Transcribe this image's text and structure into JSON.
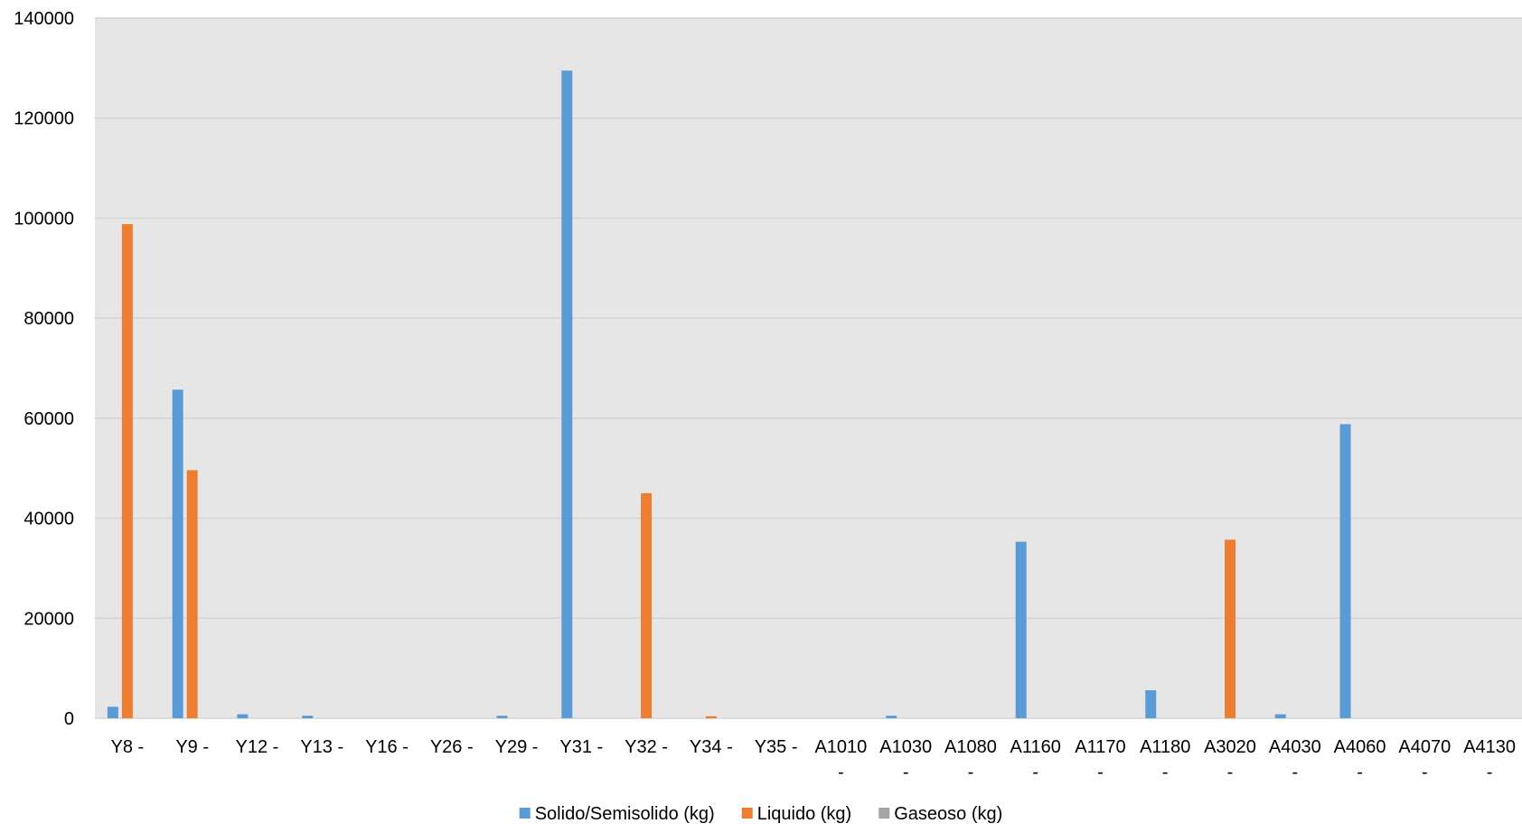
{
  "chart_data": {
    "type": "bar",
    "title": "",
    "xlabel": "",
    "ylabel": "",
    "ylim": [
      0,
      140000
    ],
    "yticks": [
      "0",
      "20000",
      "40000",
      "60000",
      "80000",
      "100000",
      "120000",
      "140000"
    ],
    "grid": true,
    "legend_position": "bottom",
    "plot_background": "#e6e6e6",
    "categories": [
      {
        "line1": "Y8 -",
        "line2": ""
      },
      {
        "line1": "Y9 -",
        "line2": ""
      },
      {
        "line1": "Y12 -",
        "line2": ""
      },
      {
        "line1": "Y13 -",
        "line2": ""
      },
      {
        "line1": "Y16 -",
        "line2": ""
      },
      {
        "line1": "Y26 -",
        "line2": ""
      },
      {
        "line1": "Y29 -",
        "line2": ""
      },
      {
        "line1": "Y31 -",
        "line2": ""
      },
      {
        "line1": "Y32 -",
        "line2": ""
      },
      {
        "line1": "Y34 -",
        "line2": ""
      },
      {
        "line1": "Y35 -",
        "line2": ""
      },
      {
        "line1": "A1010",
        "line2": "-"
      },
      {
        "line1": "A1030",
        "line2": "-"
      },
      {
        "line1": "A1080",
        "line2": "-"
      },
      {
        "line1": "A1160",
        "line2": "-"
      },
      {
        "line1": "A1170",
        "line2": "-"
      },
      {
        "line1": "A1180",
        "line2": "-"
      },
      {
        "line1": "A3020",
        "line2": "-"
      },
      {
        "line1": "A4030",
        "line2": "-"
      },
      {
        "line1": "A4060",
        "line2": "-"
      },
      {
        "line1": "A4070",
        "line2": "-"
      },
      {
        "line1": "A4130",
        "line2": "-"
      }
    ],
    "series": [
      {
        "name": "Solido/Semisolido (kg)",
        "color": "#5b9bd5",
        "values": [
          2300,
          65700,
          800,
          500,
          0,
          0,
          500,
          129500,
          0,
          0,
          0,
          0,
          500,
          0,
          35300,
          0,
          5600,
          0,
          800,
          58800,
          0,
          0
        ]
      },
      {
        "name": "Liquido (kg)",
        "color": "#ed7d31",
        "values": [
          98800,
          49600,
          0,
          0,
          0,
          0,
          0,
          0,
          45000,
          400,
          0,
          0,
          0,
          0,
          0,
          0,
          0,
          35700,
          0,
          0,
          0,
          0
        ]
      },
      {
        "name": "Gaseoso (kg)",
        "color": "#a5a5a5",
        "values": [
          0,
          0,
          0,
          0,
          0,
          0,
          0,
          0,
          0,
          0,
          0,
          0,
          0,
          0,
          0,
          0,
          0,
          0,
          0,
          0,
          0,
          0
        ]
      }
    ]
  }
}
